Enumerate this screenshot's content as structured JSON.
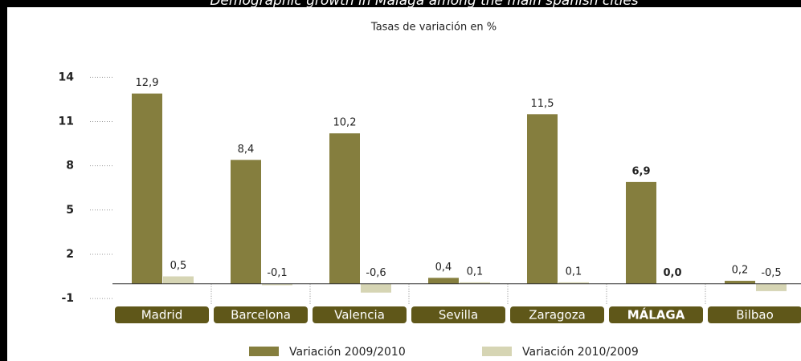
{
  "chart_data": {
    "type": "bar",
    "title": "Demographic growth in Málaga among the main spanish cities",
    "subtitle": "Tasas de variación en %",
    "categories": [
      "Madrid",
      "Barcelona",
      "Valencia",
      "Sevilla",
      "Zaragoza",
      "MÁLAGA",
      "Bilbao"
    ],
    "highlight_index": 5,
    "series": [
      {
        "name": "Variación 2009/2010",
        "color": "#857e3e",
        "values": [
          12.9,
          8.4,
          10.2,
          0.4,
          11.5,
          6.9,
          0.2
        ],
        "value_labels": [
          "12,9",
          "8,4",
          "10,2",
          "0,4",
          "11,5",
          "6,9",
          "0,2"
        ]
      },
      {
        "name": "Variación 2010/2009",
        "color": "#d6d5b4",
        "values": [
          0.5,
          -0.1,
          -0.6,
          0.1,
          0.1,
          0.0,
          -0.5
        ],
        "value_labels": [
          "0,5",
          "-0,1",
          "-0,6",
          "0,1",
          "0,1",
          "0,0",
          "-0,5"
        ]
      }
    ],
    "ylim": [
      -1.3,
      15
    ],
    "yticks": [
      -1,
      2,
      5,
      8,
      11,
      14
    ]
  }
}
